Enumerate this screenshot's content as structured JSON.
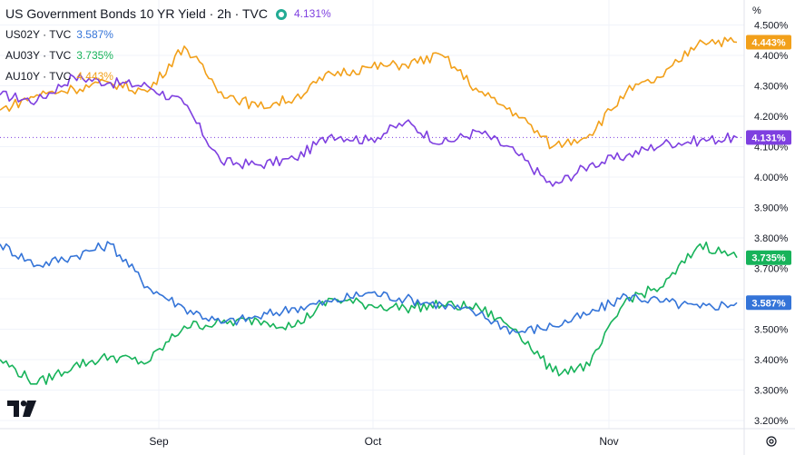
{
  "legend": {
    "title": "US Government Bonds 10 YR Yield · 2h · TVC",
    "title_value": "4.131%",
    "series": [
      {
        "label": "US02Y · TVC",
        "value": "3.587%"
      },
      {
        "label": "AU03Y · TVC",
        "value": "3.735%"
      },
      {
        "label": "AU10Y · TVC",
        "value": "4.443%"
      }
    ]
  },
  "axis_unit": "%",
  "colors": {
    "us10y": "#7e3fe0",
    "us02y": "#3474d8",
    "au03y": "#17b35a",
    "au10y": "#f2a01a",
    "market_status": "#22ab94"
  },
  "icons": {
    "logo": "tradingview-logo-icon",
    "settings": "gear-icon"
  },
  "chart_data": {
    "type": "line",
    "x_tick_labels": [
      "Sep",
      "Oct",
      "Nov"
    ],
    "y_tick_labels": [
      "4.500%",
      "4.400%",
      "4.300%",
      "4.200%",
      "4.100%",
      "4.000%",
      "3.900%",
      "3.800%",
      "3.700%",
      "3.600%",
      "3.500%",
      "3.400%",
      "3.300%",
      "3.200%"
    ],
    "y_ticks": [
      4.5,
      4.4,
      4.3,
      4.2,
      4.1,
      4.0,
      3.9,
      3.8,
      3.7,
      3.6,
      3.5,
      3.4,
      3.3,
      3.2
    ],
    "ylim": [
      3.17,
      4.57
    ],
    "x": [
      "Aug 15",
      "Aug 20",
      "Aug 25",
      "Aug 30",
      "Sep 4",
      "Sep 9",
      "Sep 14",
      "Sep 19",
      "Sep 24",
      "Sep 29",
      "Oct 4",
      "Oct 9",
      "Oct 14",
      "Oct 19",
      "Oct 24",
      "Oct 29",
      "Nov 3",
      "Nov 8",
      "Nov 13",
      "Nov 18",
      "Nov 23"
    ],
    "series": [
      {
        "name": "US Government Bonds 10 YR Yield",
        "last": "4.131%",
        "color": "#7e3fe0",
        "values": [
          4.27,
          4.25,
          4.33,
          4.31,
          4.3,
          4.24,
          4.05,
          4.04,
          4.06,
          4.14,
          4.12,
          4.18,
          4.11,
          4.15,
          4.08,
          3.97,
          4.04,
          4.07,
          4.11,
          4.12,
          4.13
        ]
      },
      {
        "name": "US02Y",
        "last": "3.587%",
        "color": "#3474d8",
        "values": [
          3.78,
          3.71,
          3.74,
          3.78,
          3.64,
          3.57,
          3.52,
          3.54,
          3.57,
          3.59,
          3.62,
          3.6,
          3.58,
          3.55,
          3.49,
          3.51,
          3.55,
          3.61,
          3.59,
          3.57,
          3.587
        ]
      },
      {
        "name": "AU03Y",
        "last": "3.735%",
        "color": "#17b35a",
        "values": [
          3.4,
          3.32,
          3.38,
          3.41,
          3.39,
          3.51,
          3.52,
          3.53,
          3.51,
          3.6,
          3.58,
          3.57,
          3.58,
          3.57,
          3.5,
          3.36,
          3.38,
          3.6,
          3.64,
          3.78,
          3.735
        ]
      },
      {
        "name": "AU10Y",
        "last": "4.443%",
        "color": "#f2a01a",
        "values": [
          4.22,
          4.27,
          4.29,
          4.31,
          4.28,
          4.43,
          4.28,
          4.23,
          4.26,
          4.34,
          4.36,
          4.37,
          4.4,
          4.28,
          4.21,
          4.1,
          4.14,
          4.28,
          4.33,
          4.45,
          4.443
        ]
      }
    ]
  }
}
